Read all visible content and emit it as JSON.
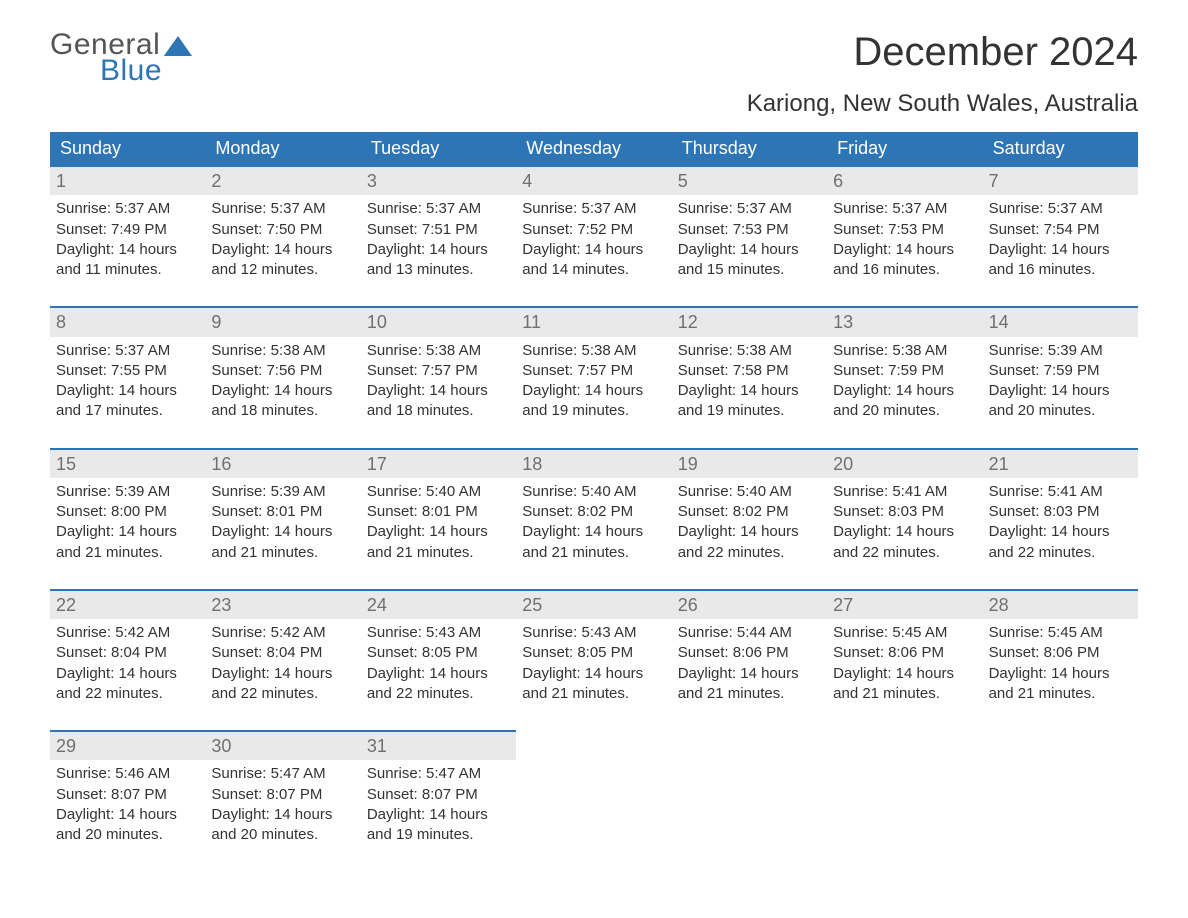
{
  "brand": {
    "line1": "General",
    "line2": "Blue"
  },
  "title": "December 2024",
  "location": "Kariong, New South Wales, Australia",
  "colors": {
    "brand_blue": "#2e75b6",
    "header_bg": "#2e75b6",
    "day_bg": "#e9e9e9",
    "row_border": "#2e75b6",
    "text_dark": "#333333",
    "text_gray": "#707070",
    "text_white": "#ffffff",
    "page_bg": "#ffffff"
  },
  "day_headers": [
    "Sunday",
    "Monday",
    "Tuesday",
    "Wednesday",
    "Thursday",
    "Friday",
    "Saturday"
  ],
  "days": [
    {
      "n": 1,
      "sunrise": "5:37 AM",
      "sunset": "7:49 PM",
      "daylight": "14 hours and 11 minutes."
    },
    {
      "n": 2,
      "sunrise": "5:37 AM",
      "sunset": "7:50 PM",
      "daylight": "14 hours and 12 minutes."
    },
    {
      "n": 3,
      "sunrise": "5:37 AM",
      "sunset": "7:51 PM",
      "daylight": "14 hours and 13 minutes."
    },
    {
      "n": 4,
      "sunrise": "5:37 AM",
      "sunset": "7:52 PM",
      "daylight": "14 hours and 14 minutes."
    },
    {
      "n": 5,
      "sunrise": "5:37 AM",
      "sunset": "7:53 PM",
      "daylight": "14 hours and 15 minutes."
    },
    {
      "n": 6,
      "sunrise": "5:37 AM",
      "sunset": "7:53 PM",
      "daylight": "14 hours and 16 minutes."
    },
    {
      "n": 7,
      "sunrise": "5:37 AM",
      "sunset": "7:54 PM",
      "daylight": "14 hours and 16 minutes."
    },
    {
      "n": 8,
      "sunrise": "5:37 AM",
      "sunset": "7:55 PM",
      "daylight": "14 hours and 17 minutes."
    },
    {
      "n": 9,
      "sunrise": "5:38 AM",
      "sunset": "7:56 PM",
      "daylight": "14 hours and 18 minutes."
    },
    {
      "n": 10,
      "sunrise": "5:38 AM",
      "sunset": "7:57 PM",
      "daylight": "14 hours and 18 minutes."
    },
    {
      "n": 11,
      "sunrise": "5:38 AM",
      "sunset": "7:57 PM",
      "daylight": "14 hours and 19 minutes."
    },
    {
      "n": 12,
      "sunrise": "5:38 AM",
      "sunset": "7:58 PM",
      "daylight": "14 hours and 19 minutes."
    },
    {
      "n": 13,
      "sunrise": "5:38 AM",
      "sunset": "7:59 PM",
      "daylight": "14 hours and 20 minutes."
    },
    {
      "n": 14,
      "sunrise": "5:39 AM",
      "sunset": "7:59 PM",
      "daylight": "14 hours and 20 minutes."
    },
    {
      "n": 15,
      "sunrise": "5:39 AM",
      "sunset": "8:00 PM",
      "daylight": "14 hours and 21 minutes."
    },
    {
      "n": 16,
      "sunrise": "5:39 AM",
      "sunset": "8:01 PM",
      "daylight": "14 hours and 21 minutes."
    },
    {
      "n": 17,
      "sunrise": "5:40 AM",
      "sunset": "8:01 PM",
      "daylight": "14 hours and 21 minutes."
    },
    {
      "n": 18,
      "sunrise": "5:40 AM",
      "sunset": "8:02 PM",
      "daylight": "14 hours and 21 minutes."
    },
    {
      "n": 19,
      "sunrise": "5:40 AM",
      "sunset": "8:02 PM",
      "daylight": "14 hours and 22 minutes."
    },
    {
      "n": 20,
      "sunrise": "5:41 AM",
      "sunset": "8:03 PM",
      "daylight": "14 hours and 22 minutes."
    },
    {
      "n": 21,
      "sunrise": "5:41 AM",
      "sunset": "8:03 PM",
      "daylight": "14 hours and 22 minutes."
    },
    {
      "n": 22,
      "sunrise": "5:42 AM",
      "sunset": "8:04 PM",
      "daylight": "14 hours and 22 minutes."
    },
    {
      "n": 23,
      "sunrise": "5:42 AM",
      "sunset": "8:04 PM",
      "daylight": "14 hours and 22 minutes."
    },
    {
      "n": 24,
      "sunrise": "5:43 AM",
      "sunset": "8:05 PM",
      "daylight": "14 hours and 22 minutes."
    },
    {
      "n": 25,
      "sunrise": "5:43 AM",
      "sunset": "8:05 PM",
      "daylight": "14 hours and 21 minutes."
    },
    {
      "n": 26,
      "sunrise": "5:44 AM",
      "sunset": "8:06 PM",
      "daylight": "14 hours and 21 minutes."
    },
    {
      "n": 27,
      "sunrise": "5:45 AM",
      "sunset": "8:06 PM",
      "daylight": "14 hours and 21 minutes."
    },
    {
      "n": 28,
      "sunrise": "5:45 AM",
      "sunset": "8:06 PM",
      "daylight": "14 hours and 21 minutes."
    },
    {
      "n": 29,
      "sunrise": "5:46 AM",
      "sunset": "8:07 PM",
      "daylight": "14 hours and 20 minutes."
    },
    {
      "n": 30,
      "sunrise": "5:47 AM",
      "sunset": "8:07 PM",
      "daylight": "14 hours and 20 minutes."
    },
    {
      "n": 31,
      "sunrise": "5:47 AM",
      "sunset": "8:07 PM",
      "daylight": "14 hours and 19 minutes."
    }
  ],
  "labels": {
    "sunrise": "Sunrise: ",
    "sunset": "Sunset: ",
    "daylight": "Daylight: "
  },
  "layout": {
    "columns": 7,
    "start_weekday_index": 0,
    "total_cells": 35
  }
}
